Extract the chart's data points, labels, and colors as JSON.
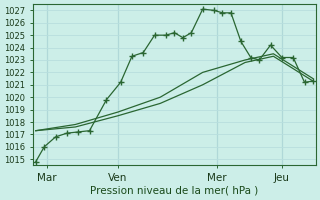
{
  "bg_color": "#cceee8",
  "grid_color": "#aadddd",
  "line_color": "#2a6632",
  "ylabel": "Pression niveau de la mer( hPa )",
  "xtick_labels": [
    "Mar",
    "Ven",
    "Mer",
    "Jeu"
  ],
  "ylim": [
    1014.5,
    1027.5
  ],
  "yticks": [
    1015,
    1016,
    1017,
    1018,
    1019,
    1020,
    1021,
    1022,
    1023,
    1024,
    1025,
    1026,
    1027
  ],
  "xmin": 0.0,
  "xmax": 10.0,
  "xtick_positions": [
    0.5,
    3.0,
    6.5,
    8.8
  ],
  "vline_positions": [
    0.5,
    3.0,
    6.5,
    8.8
  ],
  "series1_x": [
    0.1,
    0.4,
    0.8,
    1.2,
    1.6,
    2.0,
    2.6,
    3.1,
    3.5,
    3.9,
    4.3,
    4.7,
    5.0,
    5.3,
    5.6,
    6.0,
    6.4,
    6.7,
    7.0,
    7.35,
    7.7,
    8.0,
    8.4,
    8.8,
    9.2,
    9.6,
    9.9
  ],
  "series1_y": [
    1014.8,
    1016.0,
    1016.8,
    1017.1,
    1017.2,
    1017.3,
    1019.8,
    1021.2,
    1023.3,
    1023.6,
    1025.0,
    1025.0,
    1025.2,
    1024.8,
    1025.2,
    1027.1,
    1027.0,
    1026.8,
    1026.8,
    1024.5,
    1023.2,
    1023.0,
    1024.2,
    1023.2,
    1023.2,
    1021.2,
    1021.3
  ],
  "series2_x": [
    0.1,
    1.5,
    3.0,
    4.5,
    6.0,
    7.5,
    8.5,
    9.9
  ],
  "series2_y": [
    1017.3,
    1017.6,
    1018.5,
    1019.5,
    1021.0,
    1022.8,
    1023.3,
    1021.3
  ],
  "series3_x": [
    0.1,
    1.5,
    3.0,
    4.5,
    6.0,
    7.5,
    8.5,
    9.9
  ],
  "series3_y": [
    1017.3,
    1017.8,
    1018.8,
    1020.0,
    1022.0,
    1023.0,
    1023.5,
    1021.5
  ]
}
